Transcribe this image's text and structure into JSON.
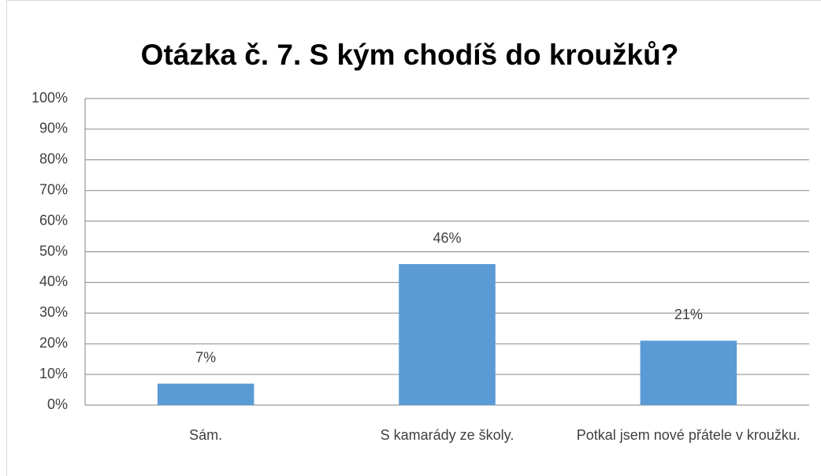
{
  "chart_data": {
    "type": "bar",
    "title": "Otázka č. 7. S kým chodíš do kroužků?",
    "categories": [
      "Sám.",
      "S kamarády ze školy.",
      "Potkal jsem nové přátele v kroužku."
    ],
    "values": [
      7,
      46,
      21
    ],
    "value_labels": [
      "7%",
      "46%",
      "21%"
    ],
    "color": "#5b9bd5",
    "ylim": [
      0,
      100
    ],
    "yticks": [
      {
        "value": 0,
        "label": "0%"
      },
      {
        "value": 10,
        "label": "10%"
      },
      {
        "value": 20,
        "label": "20%"
      },
      {
        "value": 30,
        "label": "30%"
      },
      {
        "value": 40,
        "label": "40%"
      },
      {
        "value": 50,
        "label": "50%"
      },
      {
        "value": 60,
        "label": "60%"
      },
      {
        "value": 70,
        "label": "70%"
      },
      {
        "value": 80,
        "label": "80%"
      },
      {
        "value": 90,
        "label": "90%"
      },
      {
        "value": 100,
        "label": "100%"
      }
    ],
    "grid": true
  }
}
